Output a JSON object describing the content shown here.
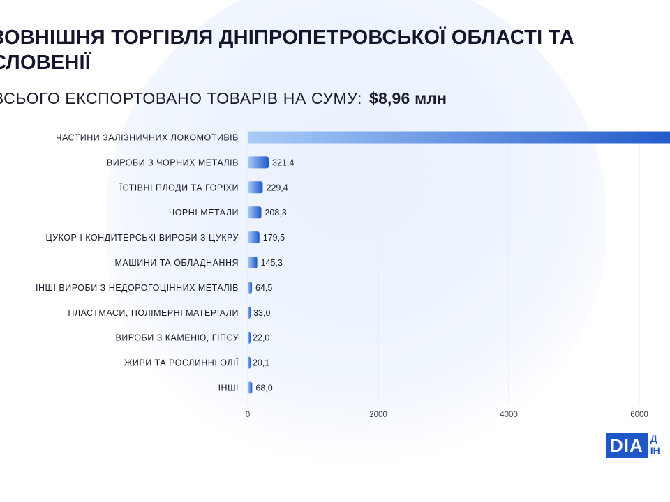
{
  "header": {
    "title": "ЗОВНІШНЯ ТОРГІВЛЯ ДНІПРОПЕТРОВСЬКОЇ ОБЛАСТІ ТА СЛОВЕНІЇ",
    "subtitle_prefix": "ВСЬОГО ЕКСПОРТОВАНО ТОВАРІВ НА СУМУ:",
    "subtitle_value": "$8,96 млн"
  },
  "chart_data": {
    "type": "bar",
    "orientation": "horizontal",
    "categories": [
      "ЧАСТИНИ ЗАЛІЗНИЧНИХ ЛОКОМОТИВІВ",
      "ВИРОБИ З ЧОРНИХ МЕТАЛІВ",
      "ЇСТІВНІ ПЛОДИ ТА ГОРІХИ",
      "ЧОРНІ МЕТАЛИ",
      "ЦУКОР І КОНДИТЕРСЬКІ ВИРОБИ З ЦУКРУ",
      "МАШИНИ ТА ОБЛАДНАННЯ",
      "ІНШІ ВИРОБИ З НЕДОРОГОЦІННИХ МЕТАЛІВ",
      "ПЛАСТМАСИ, ПОЛІМЕРНІ МАТЕРІАЛИ",
      "ВИРОБИ З КАМЕНЮ, ГІПСУ",
      "ЖИРИ ТА РОСЛИННІ ОЛІЇ",
      "ІНШІ"
    ],
    "values": [
      7660,
      321.4,
      229.4,
      208.3,
      179.5,
      145.3,
      64.5,
      33.0,
      22.0,
      20.1,
      68.0
    ],
    "value_labels": [
      "",
      "321,4",
      "229,4",
      "208,3",
      "179,5",
      "145,3",
      "64,5",
      "33,0",
      "22,0",
      "20,1",
      "68,0"
    ],
    "xticks": [
      0,
      2000,
      4000,
      6000
    ],
    "xlim": [
      0,
      8000
    ],
    "grid": true,
    "bar_colors": [
      "#a9ccf8",
      "#1f57c9"
    ]
  },
  "logo": {
    "main": "DIA",
    "side_top": "Д",
    "side_bottom": "ІН"
  }
}
